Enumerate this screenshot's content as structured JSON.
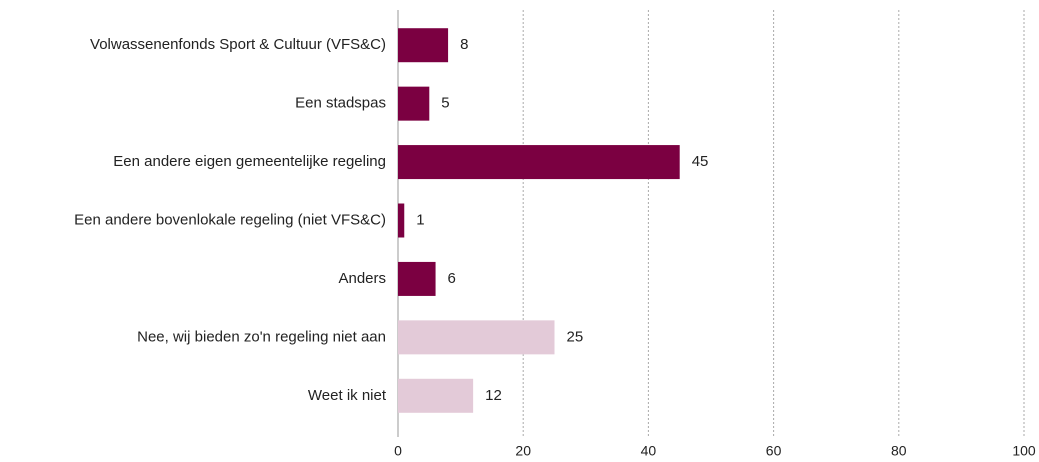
{
  "chart_data": {
    "type": "bar",
    "orientation": "horizontal",
    "categories": [
      "Volwassenenfonds Sport & Cultuur (VFS&C)",
      "Een stadspas",
      "Een andere eigen gemeentelijke regeling",
      "Een andere bovenlokale regeling (niet VFS&C)",
      "Anders",
      "Nee, wij bieden zo'n regeling niet aan",
      "Weet ik niet"
    ],
    "values": [
      8,
      5,
      45,
      1,
      6,
      25,
      12
    ],
    "colors": [
      "#7b0041",
      "#7b0041",
      "#7b0041",
      "#7b0041",
      "#7b0041",
      "#e3cad8",
      "#e3cad8"
    ],
    "xlim": [
      0,
      100
    ],
    "xticks": [
      0,
      20,
      40,
      60,
      80,
      100
    ],
    "grid": true
  }
}
